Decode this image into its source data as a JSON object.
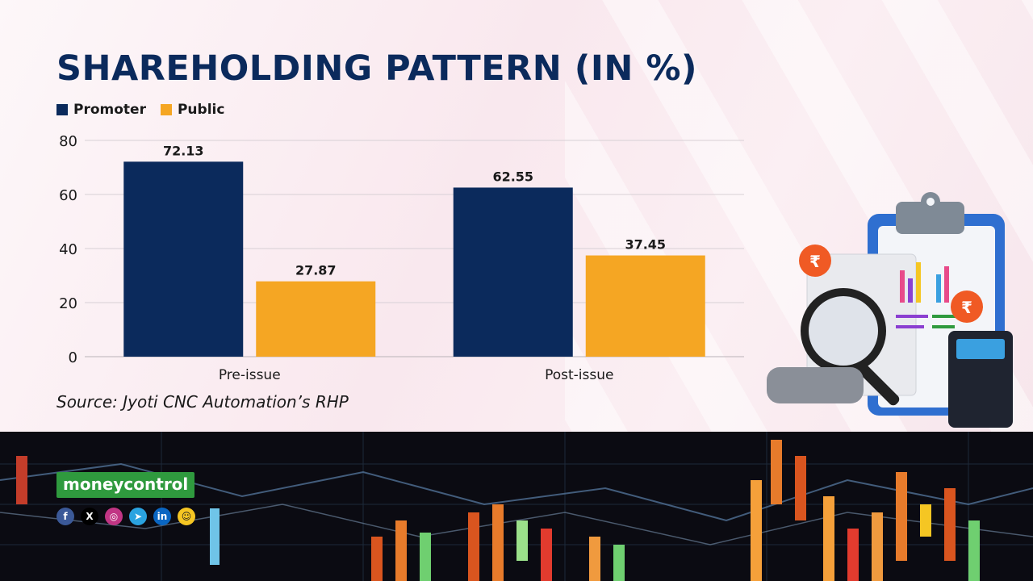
{
  "title": "SHAREHOLDING PATTERN (IN %)",
  "legend": [
    {
      "label": "Promoter",
      "color": "#0b2a5c"
    },
    {
      "label": "Public",
      "color": "#f5a623"
    }
  ],
  "source": "Source: Jyoti CNC Automation’s RHP",
  "brand": "moneycontrol",
  "social_icons": [
    "facebook-icon",
    "x-icon",
    "instagram-icon",
    "telegram-icon",
    "linkedin-icon",
    "snapchat-icon"
  ],
  "chart_data": {
    "type": "bar",
    "categories": [
      "Pre-issue",
      "Post-issue"
    ],
    "series": [
      {
        "name": "Promoter",
        "values": [
          72.13,
          62.55
        ],
        "color": "#0b2a5c"
      },
      {
        "name": "Public",
        "values": [
          27.87,
          37.45
        ],
        "color": "#f5a623"
      }
    ],
    "yticks": [
      0,
      20,
      40,
      60,
      80
    ],
    "ylim": [
      0,
      80
    ],
    "grid": true,
    "legend_position": "top-left"
  }
}
